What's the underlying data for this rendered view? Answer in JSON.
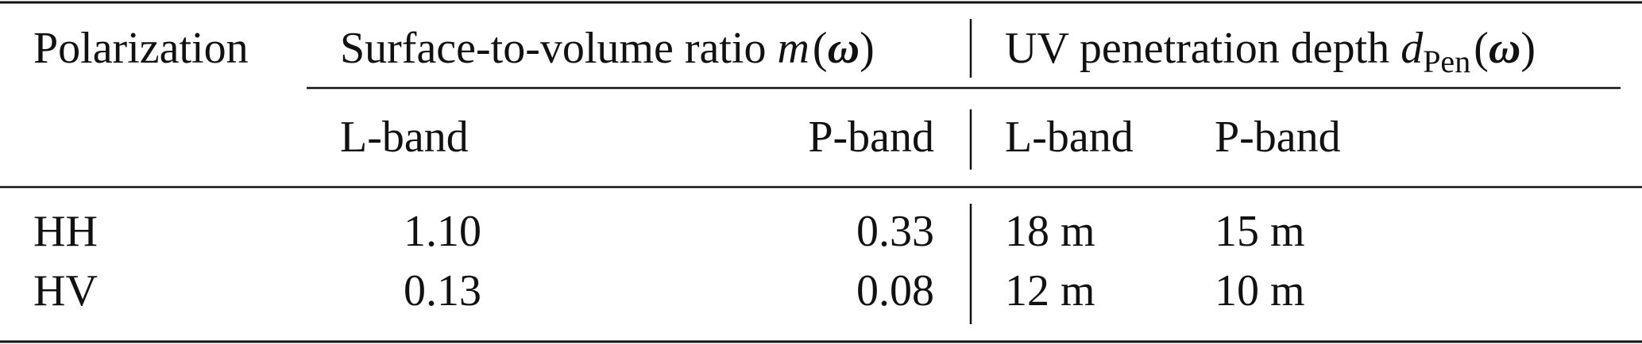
{
  "table": {
    "header": {
      "first": "Polarization",
      "groups": [
        {
          "text": "Surface-to-volume ratio",
          "symbol": "m",
          "subscript": null,
          "open": "(",
          "argument": "ω",
          "close": ")"
        },
        {
          "text": "UV penetration depth",
          "symbol": "d",
          "subscript": "Pen",
          "open": "(",
          "argument": "ω",
          "close": ")"
        }
      ],
      "subcolumns": [
        "L-band",
        "P-band",
        "L-band",
        "P-band"
      ]
    },
    "rows": [
      [
        "HH",
        "1.10",
        "0.33",
        "18 m",
        "15 m"
      ],
      [
        "HV",
        "0.13",
        "0.08",
        "12 m",
        "10 m"
      ]
    ]
  }
}
